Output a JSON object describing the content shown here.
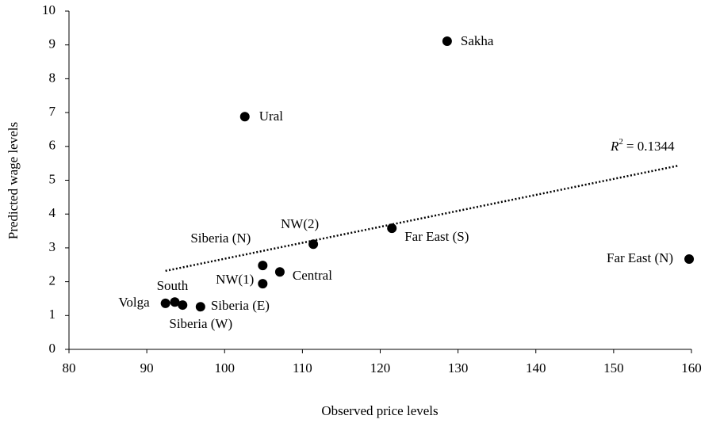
{
  "chart_data": {
    "type": "scatter",
    "xlabel": "Observed price levels",
    "ylabel": "Predicted wage levels",
    "xlim": [
      80,
      160
    ],
    "xticks": [
      80,
      90,
      100,
      110,
      120,
      130,
      140,
      150,
      160
    ],
    "ylim": [
      0,
      10
    ],
    "yticks": [
      0,
      1,
      2,
      3,
      4,
      5,
      6,
      7,
      8,
      9,
      10
    ],
    "series": [
      {
        "color": "#000000",
        "labels": [
          "Volga",
          "South",
          "Siberia (W)",
          "Siberia (E)",
          "NW(1)",
          "Central",
          "Siberia (N)",
          "NW(2)",
          "Far East (S)",
          "Far East (N)",
          "Ural",
          "Sakha"
        ],
        "x": [
          92.4,
          93.6,
          94.6,
          96.9,
          104.9,
          107.1,
          104.9,
          111.4,
          121.5,
          159.7,
          102.6,
          128.6
        ],
        "y": [
          1.36,
          1.4,
          1.31,
          1.26,
          1.94,
          2.29,
          2.48,
          3.11,
          3.58,
          2.67,
          6.88,
          9.11
        ]
      }
    ],
    "trendline": {
      "x": [
        92.4,
        158.3
      ],
      "y": [
        2.32,
        5.43
      ],
      "label_symbol": "R",
      "label_exponent": "2",
      "label_text": "= 0.1344"
    }
  }
}
